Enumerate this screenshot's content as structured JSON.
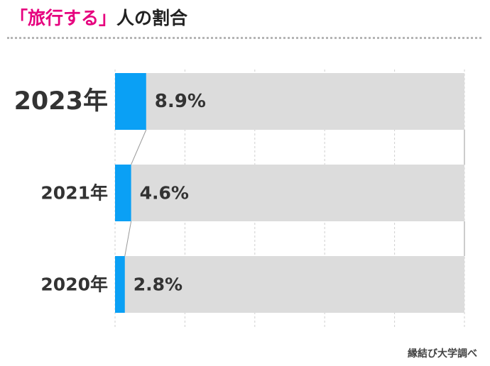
{
  "header": {
    "title_highlight": "「旅行する」",
    "title_rest": "人の割合"
  },
  "footer": {
    "source": "縁結び大学調べ"
  },
  "colors": {
    "bar": "#0aa0f5",
    "track": "#dcdcdc",
    "accent": "#e6007e"
  },
  "chart_data": {
    "type": "bar",
    "orientation": "horizontal",
    "categories": [
      "2023年",
      "2021年",
      "2020年"
    ],
    "values": [
      8.9,
      4.6,
      2.8
    ],
    "value_labels": [
      "8.9%",
      "4.6%",
      "2.8%"
    ],
    "xlim": [
      0,
      100
    ],
    "grid": true
  }
}
